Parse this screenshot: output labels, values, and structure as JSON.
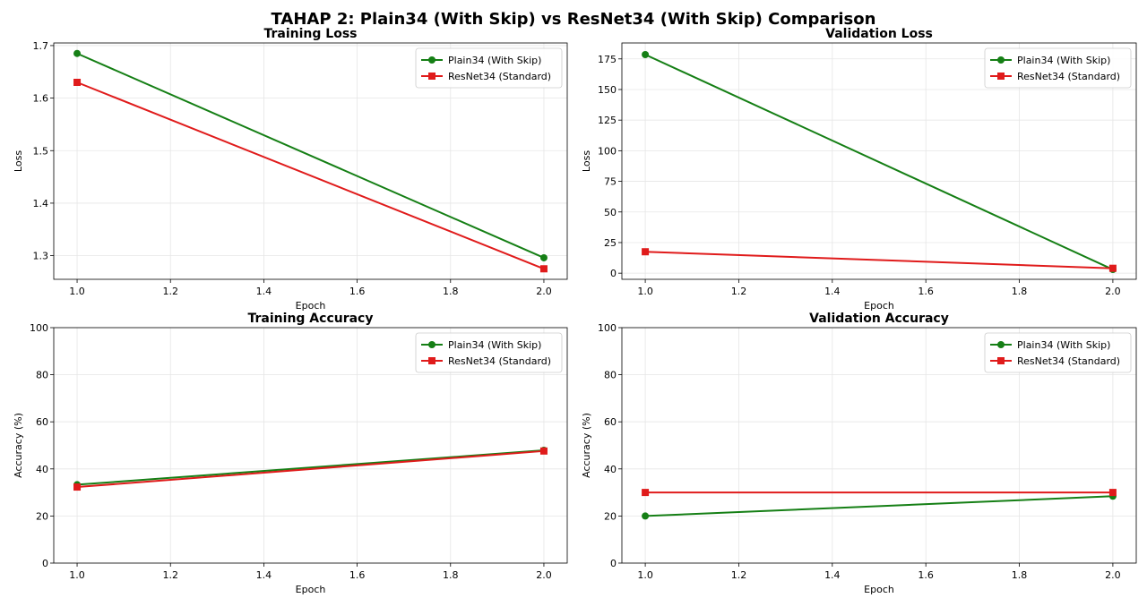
{
  "figure_title": "TAHAP 2: Plain34 (With Skip) vs ResNet34 (With Skip) Comparison",
  "colors": {
    "plain": "#157f15",
    "resnet": "#e01b1b"
  },
  "chart_data": [
    {
      "type": "line",
      "title": "Training Loss",
      "xlabel": "Epoch",
      "ylabel": "Loss",
      "xlim": [
        0.95,
        2.05
      ],
      "ylim": [
        1.255,
        1.705
      ],
      "xticks": [
        1.0,
        1.2,
        1.4,
        1.6,
        1.8,
        2.0
      ],
      "xtick_labels": [
        "1.0",
        "1.2",
        "1.4",
        "1.6",
        "1.8",
        "2.0"
      ],
      "yticks": [
        1.3,
        1.4,
        1.5,
        1.6,
        1.7
      ],
      "ytick_labels": [
        "1.3",
        "1.4",
        "1.5",
        "1.6",
        "1.7"
      ],
      "grid": true,
      "legend_position": "top-right",
      "series": [
        {
          "name": "Plain34 (With Skip)",
          "marker": "circle",
          "x": [
            1.0,
            2.0
          ],
          "values": [
            1.685,
            1.296
          ]
        },
        {
          "name": "ResNet34 (Standard)",
          "marker": "square",
          "x": [
            1.0,
            2.0
          ],
          "values": [
            1.63,
            1.275
          ]
        }
      ]
    },
    {
      "type": "line",
      "title": "Validation Loss",
      "xlabel": "Epoch",
      "ylabel": "Loss",
      "xlim": [
        0.95,
        2.05
      ],
      "ylim": [
        -5,
        188
      ],
      "xticks": [
        1.0,
        1.2,
        1.4,
        1.6,
        1.8,
        2.0
      ],
      "xtick_labels": [
        "1.0",
        "1.2",
        "1.4",
        "1.6",
        "1.8",
        "2.0"
      ],
      "yticks": [
        0,
        25,
        50,
        75,
        100,
        125,
        150,
        175
      ],
      "ytick_labels": [
        "0",
        "25",
        "50",
        "75",
        "100",
        "125",
        "150",
        "175"
      ],
      "grid": true,
      "legend_position": "top-right",
      "series": [
        {
          "name": "Plain34 (With Skip)",
          "marker": "circle",
          "x": [
            1.0,
            2.0
          ],
          "values": [
            178.5,
            3.0
          ]
        },
        {
          "name": "ResNet34 (Standard)",
          "marker": "square",
          "x": [
            1.0,
            2.0
          ],
          "values": [
            17.5,
            4.0
          ]
        }
      ]
    },
    {
      "type": "line",
      "title": "Training Accuracy",
      "xlabel": "Epoch",
      "ylabel": "Accuracy (%)",
      "xlim": [
        0.95,
        2.05
      ],
      "ylim": [
        0,
        100
      ],
      "xticks": [
        1.0,
        1.2,
        1.4,
        1.6,
        1.8,
        2.0
      ],
      "xtick_labels": [
        "1.0",
        "1.2",
        "1.4",
        "1.6",
        "1.8",
        "2.0"
      ],
      "yticks": [
        0,
        20,
        40,
        60,
        80,
        100
      ],
      "ytick_labels": [
        "0",
        "20",
        "40",
        "60",
        "80",
        "100"
      ],
      "grid": true,
      "legend_position": "top-right",
      "series": [
        {
          "name": "Plain34 (With Skip)",
          "marker": "circle",
          "x": [
            1.0,
            2.0
          ],
          "values": [
            33.3,
            47.9
          ]
        },
        {
          "name": "ResNet34 (Standard)",
          "marker": "square",
          "x": [
            1.0,
            2.0
          ],
          "values": [
            32.3,
            47.6
          ]
        }
      ]
    },
    {
      "type": "line",
      "title": "Validation Accuracy",
      "xlabel": "Epoch",
      "ylabel": "Accuracy (%)",
      "xlim": [
        0.95,
        2.05
      ],
      "ylim": [
        0,
        100
      ],
      "xticks": [
        1.0,
        1.2,
        1.4,
        1.6,
        1.8,
        2.0
      ],
      "xtick_labels": [
        "1.0",
        "1.2",
        "1.4",
        "1.6",
        "1.8",
        "2.0"
      ],
      "yticks": [
        0,
        20,
        40,
        60,
        80,
        100
      ],
      "ytick_labels": [
        "0",
        "20",
        "40",
        "60",
        "80",
        "100"
      ],
      "grid": true,
      "legend_position": "top-right",
      "series": [
        {
          "name": "Plain34 (With Skip)",
          "marker": "circle",
          "x": [
            1.0,
            2.0
          ],
          "values": [
            20.0,
            28.4
          ]
        },
        {
          "name": "ResNet34 (Standard)",
          "marker": "square",
          "x": [
            1.0,
            2.0
          ],
          "values": [
            30.0,
            30.0
          ]
        }
      ]
    }
  ]
}
